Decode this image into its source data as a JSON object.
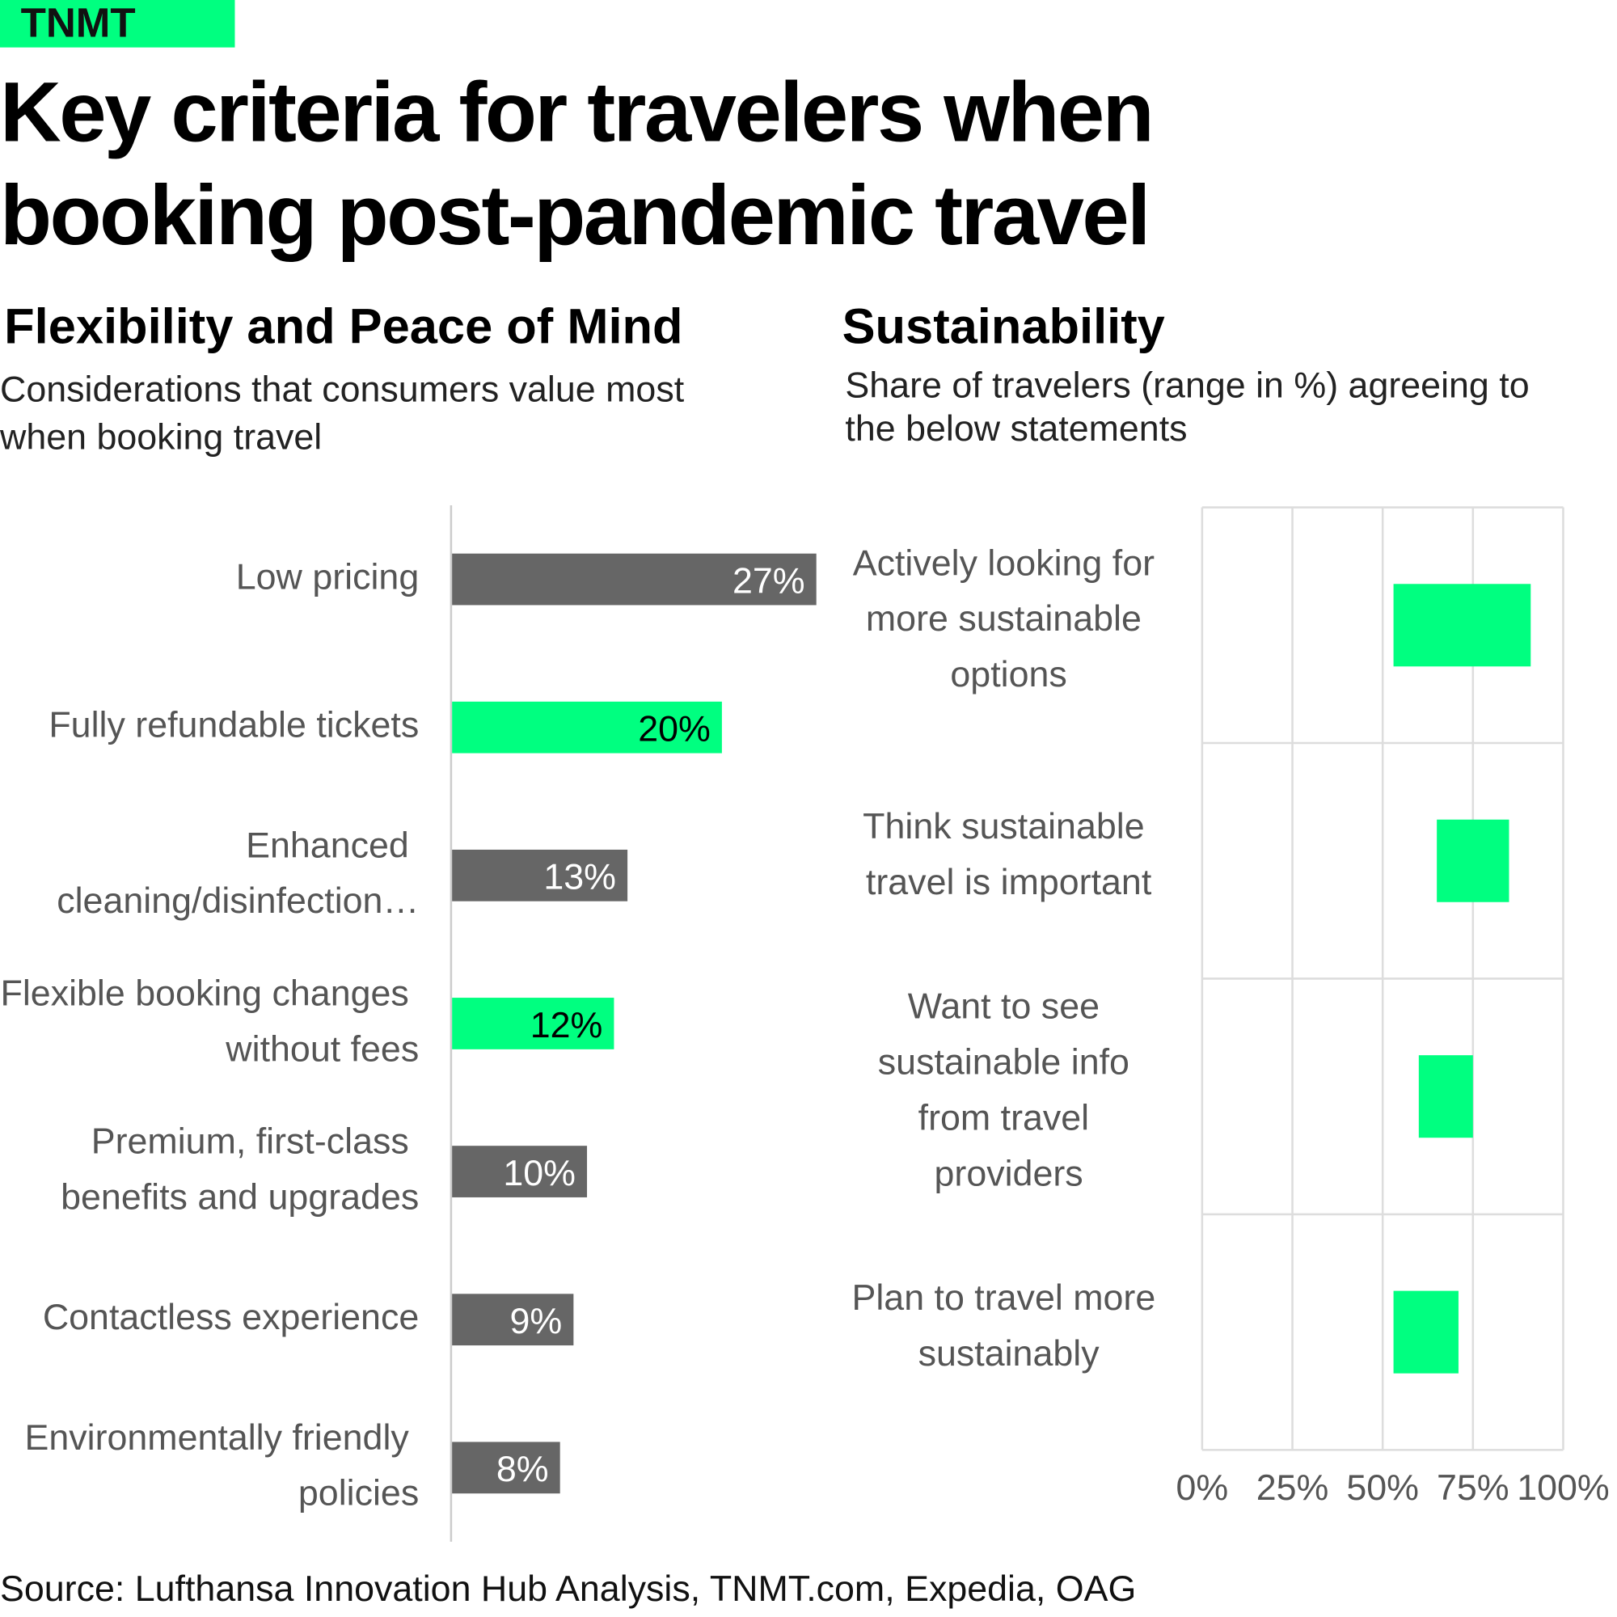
{
  "brand": "TNMT",
  "title": "Key criteria for travelers when booking post-pandemic travel",
  "source": "Source: Lufthansa Innovation Hub Analysis, TNMT.com, Expedia, OAG",
  "chart_data": [
    {
      "type": "bar",
      "orientation": "horizontal",
      "title": "Flexibility and Peace of Mind",
      "subtitle": "Considerations that consumers value most when booking travel",
      "categories": [
        "Low pricing",
        "Fully refundable tickets",
        "Enhanced cleaning/disinfection…",
        "Flexible booking changes without fees",
        "Premium, first-class benefits and upgrades",
        "Contactless experience",
        "Environmentally friendly policies"
      ],
      "values": [
        27,
        20,
        13,
        12,
        10,
        9,
        8
      ],
      "value_labels": [
        "27%",
        "20%",
        "13%",
        "12%",
        "10%",
        "9%",
        "8%"
      ],
      "colors": [
        "#666666",
        "#00ff80",
        "#666666",
        "#00ff80",
        "#666666",
        "#666666",
        "#666666"
      ]
    },
    {
      "type": "range-bar",
      "orientation": "horizontal",
      "title": "Sustainability",
      "subtitle": "Share of travelers (range in %) agreeing to the below statements",
      "categories": [
        "Actively looking for more sustainable options",
        "Think sustainable travel is important",
        "Want to see sustainable info from travel providers",
        "Plan to travel more sustainably"
      ],
      "starts": [
        53,
        65,
        60,
        53
      ],
      "ends": [
        91,
        85,
        75,
        71
      ],
      "color": "#00ff80",
      "xlim": [
        0,
        100
      ],
      "xticks": [
        {
          "value": 0,
          "label": "0%"
        },
        {
          "value": 25,
          "label": "25%"
        },
        {
          "value": 50,
          "label": "50%"
        },
        {
          "value": 75,
          "label": "75%"
        },
        {
          "value": 100,
          "label": "100%"
        }
      ],
      "grid": true
    }
  ]
}
